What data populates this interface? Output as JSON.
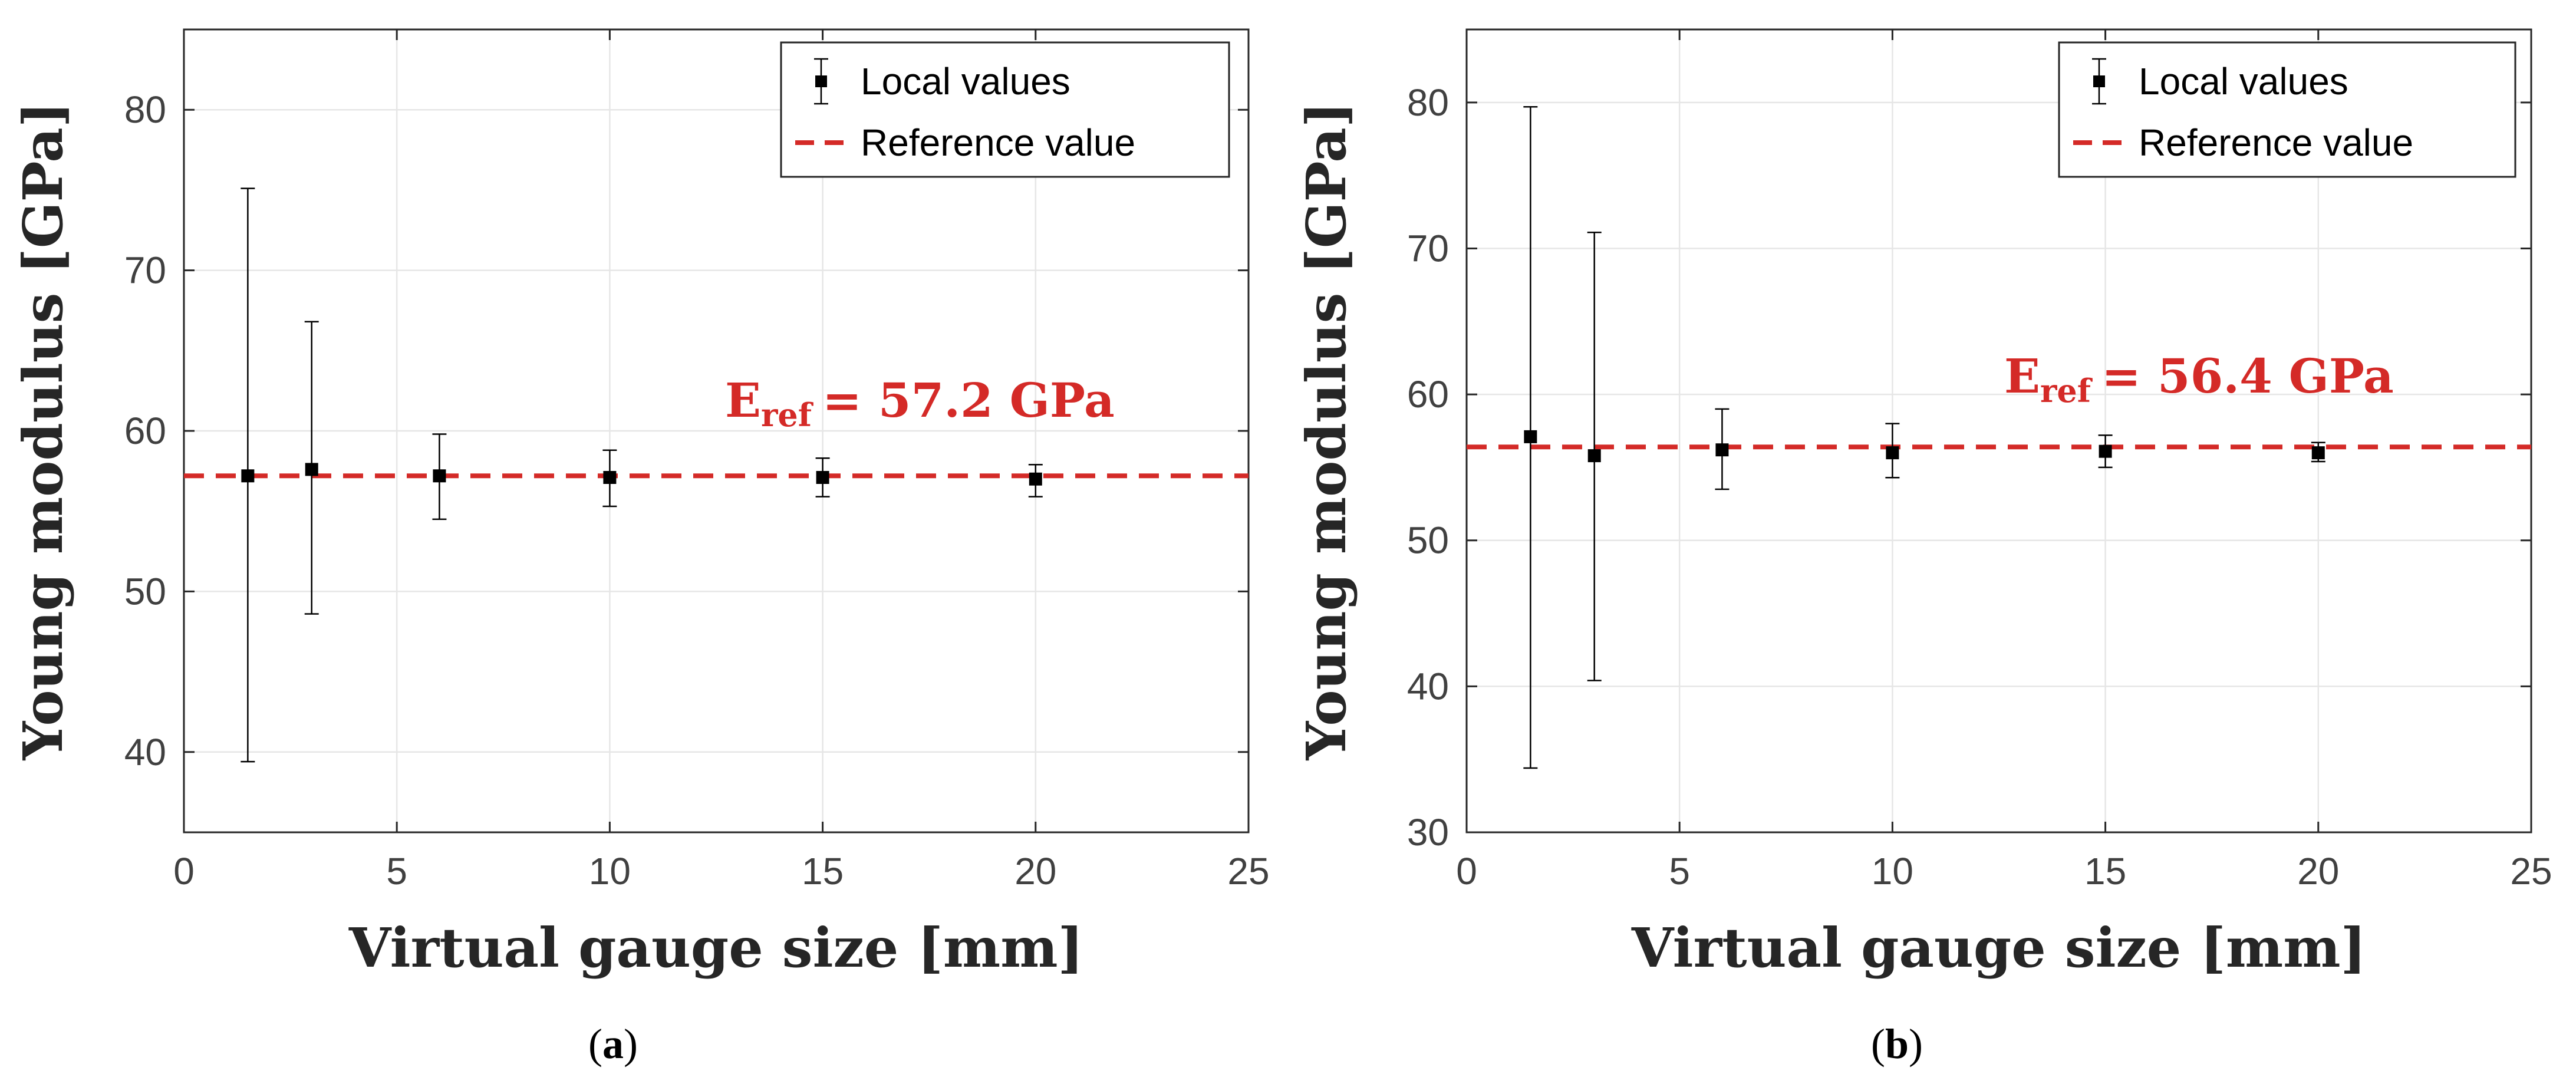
{
  "chart_data": [
    {
      "type": "scatter",
      "panel_label": "a",
      "xlabel": "Virtual gauge size [mm]",
      "ylabel": "Young modulus [GPa]",
      "xlim": [
        0,
        25
      ],
      "ylim": [
        35,
        85
      ],
      "xticks": [
        0,
        5,
        10,
        15,
        20,
        25
      ],
      "yticks": [
        40,
        50,
        60,
        70,
        80
      ],
      "grid": true,
      "legend_position": "top-right",
      "series": [
        {
          "name": "Local values",
          "x": [
            1.5,
            3,
            6,
            10,
            15,
            20
          ],
          "y": [
            57.2,
            57.6,
            57.2,
            57.1,
            57.1,
            57.0
          ],
          "error_low": [
            39.4,
            48.6,
            54.5,
            55.3,
            55.9,
            55.9
          ],
          "error_high": [
            75.1,
            66.8,
            59.8,
            58.8,
            58.3,
            57.9
          ]
        },
        {
          "name": "Reference value",
          "style": "dashed",
          "y": 57.2
        }
      ],
      "annotation": {
        "symbol": "E",
        "subscript": "ref",
        "text": "= 57.2 GPa",
        "color": "#d42a27"
      }
    },
    {
      "type": "scatter",
      "panel_label": "b",
      "xlabel": "Virtual gauge size [mm]",
      "ylabel": "Young modulus [GPa]",
      "xlim": [
        0,
        25
      ],
      "ylim": [
        30,
        85
      ],
      "xticks": [
        0,
        5,
        10,
        15,
        20,
        25
      ],
      "yticks": [
        30,
        40,
        50,
        60,
        70,
        80
      ],
      "grid": true,
      "legend_position": "top-right",
      "series": [
        {
          "name": "Local values",
          "x": [
            1.5,
            3,
            6,
            10,
            15,
            20
          ],
          "y": [
            57.1,
            55.8,
            56.2,
            56.0,
            56.1,
            56.0
          ],
          "error_low": [
            34.4,
            40.4,
            53.5,
            54.3,
            55.0,
            55.4
          ],
          "error_high": [
            79.7,
            71.1,
            59.0,
            58.0,
            57.2,
            56.7
          ]
        },
        {
          "name": "Reference value",
          "style": "dashed",
          "y": 56.4
        }
      ],
      "annotation": {
        "symbol": "E",
        "subscript": "ref",
        "text": "= 56.4 GPa",
        "color": "#d42a27"
      }
    }
  ]
}
